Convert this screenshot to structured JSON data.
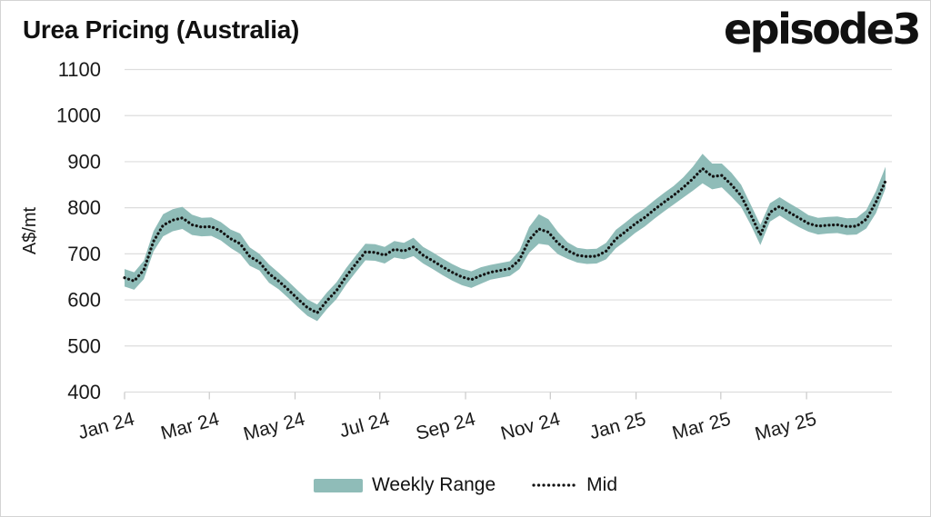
{
  "header": {
    "logo": "episode3"
  },
  "colors": {
    "band": "#8fbcb8",
    "mid": "#141414",
    "grid": "#dddddd",
    "tick": "#c9c9c9",
    "text": "#1a1a1a"
  },
  "legend": {
    "position": "bottom"
  },
  "chart_data": {
    "type": "area",
    "title": "Urea Pricing (Australia)",
    "xlabel": "",
    "ylabel": "A$/mt",
    "ylim": [
      400,
      1100
    ],
    "y_ticks": [
      1100,
      1000,
      900,
      800,
      700,
      600,
      500,
      400
    ],
    "x_tick_labels": [
      "Jan 24",
      "Mar 24",
      "May 24",
      "Jul 24",
      "Sep 24",
      "Nov 24",
      "Jan 25",
      "Mar 25",
      "May 25"
    ],
    "x_tick_positions_weeks": [
      0,
      8.8,
      17.7,
      26.5,
      35.4,
      44.2,
      53.1,
      61.9,
      70.8
    ],
    "x_total_weeks": 79,
    "x_unit": "weekly, Jan 2024 - Jun 2025",
    "grid": "horizontal",
    "legend_position": "bottom",
    "series": [
      {
        "name": "Weekly Range",
        "type": "band",
        "low": [
          629,
          622,
          645,
          705,
          738,
          749,
          754,
          741,
          738,
          739,
          729,
          713,
          700,
          674,
          664,
          637,
          623,
          604,
          584,
          565,
          554,
          580,
          602,
          633,
          660,
          686,
          685,
          679,
          692,
          688,
          695,
          679,
          667,
          654,
          642,
          632,
          626,
          635,
          644,
          648,
          652,
          667,
          702,
          722,
          719,
          699,
          689,
          681,
          678,
          679,
          688,
          712,
          728,
          745,
          759,
          776,
          792,
          807,
          822,
          837,
          853,
          840,
          844,
          824,
          802,
          763,
          719,
          770,
          783,
          770,
          758,
          748,
          742,
          744,
          745,
          741,
          742,
          755,
          788,
          842
        ],
        "high": [
          667,
          660,
          685,
          749,
          786,
          797,
          802,
          785,
          778,
          779,
          769,
          753,
          744,
          714,
          700,
          677,
          659,
          640,
          620,
          601,
          590,
          616,
          638,
          669,
          696,
          722,
          721,
          715,
          728,
          724,
          735,
          715,
          703,
          690,
          678,
          668,
          662,
          671,
          676,
          680,
          684,
          707,
          758,
          786,
          775,
          747,
          725,
          713,
          710,
          711,
          724,
          752,
          768,
          785,
          799,
          816,
          832,
          847,
          866,
          889,
          917,
          896,
          896,
          876,
          850,
          807,
          763,
          810,
          823,
          810,
          798,
          784,
          778,
          780,
          781,
          777,
          778,
          795,
          836,
          889
        ]
      },
      {
        "name": "Mid",
        "type": "dotted_line",
        "values": [
          648,
          641,
          665,
          727,
          762,
          773,
          778,
          763,
          758,
          759,
          749,
          733,
          722,
          694,
          682,
          657,
          641,
          622,
          602,
          583,
          572,
          598,
          620,
          651,
          678,
          704,
          703,
          697,
          710,
          706,
          715,
          697,
          685,
          672,
          660,
          650,
          644,
          653,
          660,
          664,
          668,
          687,
          730,
          754,
          747,
          723,
          707,
          697,
          694,
          695,
          706,
          732,
          748,
          765,
          779,
          796,
          812,
          827,
          844,
          863,
          885,
          868,
          870,
          850,
          826,
          785,
          741,
          790,
          803,
          790,
          778,
          766,
          760,
          762,
          763,
          759,
          760,
          775,
          812,
          858
        ]
      }
    ]
  }
}
